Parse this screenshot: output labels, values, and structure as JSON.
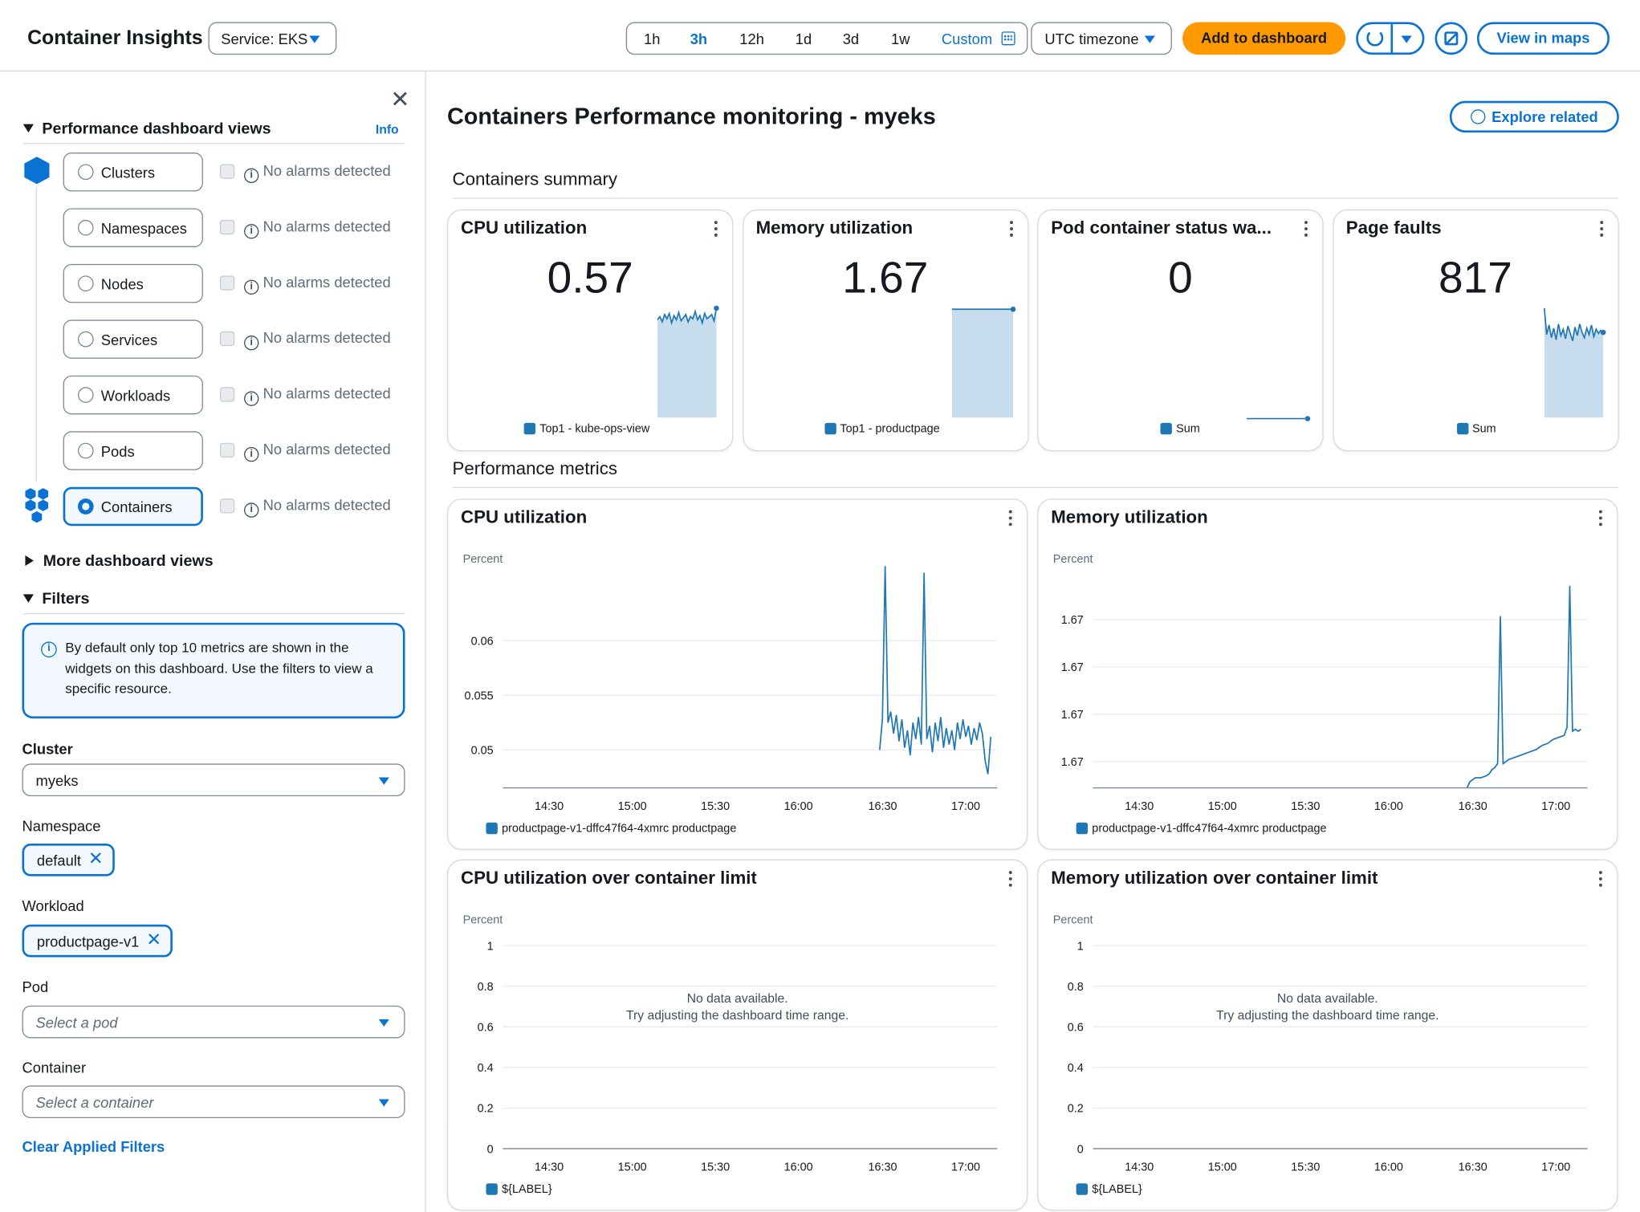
{
  "header": {
    "title": "Container Insights",
    "service_select": "Service: EKS",
    "time_options": [
      "1h",
      "3h",
      "12h",
      "1d",
      "3d",
      "1w"
    ],
    "time_active": "3h",
    "custom_label": "Custom",
    "timezone": "UTC timezone",
    "add_dashboard": "Add to dashboard",
    "view_maps": "View in maps"
  },
  "sidebar": {
    "perf_views_heading": "Performance dashboard views",
    "info_link": "Info",
    "views": [
      {
        "label": "Clusters",
        "alarm": "No alarms detected"
      },
      {
        "label": "Namespaces",
        "alarm": "No alarms detected"
      },
      {
        "label": "Nodes",
        "alarm": "No alarms detected"
      },
      {
        "label": "Services",
        "alarm": "No alarms detected"
      },
      {
        "label": "Workloads",
        "alarm": "No alarms detected"
      },
      {
        "label": "Pods",
        "alarm": "No alarms detected"
      },
      {
        "label": "Containers",
        "alarm": "No alarms detected"
      }
    ],
    "selected_view": "Containers",
    "more_views": "More dashboard views",
    "filters_heading": "Filters",
    "filters_info": "By default only top 10 metrics are shown in the widgets on this dashboard. Use the filters to view a specific resource.",
    "cluster_label": "Cluster",
    "cluster_value": "myeks",
    "namespace_label": "Namespace",
    "namespace_token": "default",
    "workload_label": "Workload",
    "workload_token": "productpage-v1",
    "pod_label": "Pod",
    "pod_placeholder": "Select a pod",
    "container_label": "Container",
    "container_placeholder": "Select a container",
    "clear_filters": "Clear Applied Filters"
  },
  "main": {
    "page_title": "Containers Performance monitoring - myeks",
    "explore_related": "Explore related",
    "summary_heading": "Containers summary",
    "perf_heading": "Performance metrics",
    "summary_cards": [
      {
        "title": "CPU utilization",
        "value": "0.57",
        "legend": "Top1 - kube-ops-view"
      },
      {
        "title": "Memory utilization",
        "value": "1.67",
        "legend": "Top1 - productpage"
      },
      {
        "title": "Pod container status wa...",
        "value": "0",
        "legend": "Sum"
      },
      {
        "title": "Page faults",
        "value": "817",
        "legend": "Sum"
      }
    ],
    "charts": [
      {
        "title": "CPU utilization",
        "unit": "Percent",
        "legend": "productpage-v1-dffc47f64-4xmrc productpage"
      },
      {
        "title": "Memory utilization",
        "unit": "Percent",
        "legend": "productpage-v1-dffc47f64-4xmrc productpage"
      },
      {
        "title": "CPU utilization over container limit",
        "unit": "Percent",
        "legend": "${LABEL}",
        "nodata_1": "No data available.",
        "nodata_2": "Try adjusting the dashboard time range."
      },
      {
        "title": "Memory utilization over container limit",
        "unit": "Percent",
        "legend": "${LABEL}",
        "nodata_1": "No data available.",
        "nodata_2": "Try adjusting the dashboard time range."
      }
    ]
  },
  "chart_data": [
    {
      "type": "line",
      "title": "CPU utilization",
      "ylabel": "Percent",
      "x": [
        "14:30",
        "15:00",
        "15:30",
        "16:00",
        "16:30",
        "17:00"
      ],
      "yticks": [
        "0.06",
        "0.055",
        "0.05"
      ],
      "ylim": [
        0.047,
        0.066
      ],
      "xlim_hours": [
        "14:10",
        "17:10"
      ],
      "series": [
        {
          "name": "productpage-v1-dffc47f64-4xmrc productpage",
          "points": [
            [
              "16:29",
              0.05
            ],
            [
              "16:30",
              0.0528
            ],
            [
              "16:31",
              0.0668
            ],
            [
              "16:32",
              0.0525
            ],
            [
              "16:33",
              0.0535
            ],
            [
              "16:34",
              0.0515
            ],
            [
              "16:35",
              0.0532
            ],
            [
              "16:36",
              0.0508
            ],
            [
              "16:37",
              0.0528
            ],
            [
              "16:38",
              0.0502
            ],
            [
              "16:39",
              0.0518
            ],
            [
              "16:40",
              0.0495
            ],
            [
              "16:41",
              0.0525
            ],
            [
              "16:42",
              0.051
            ],
            [
              "16:43",
              0.053
            ],
            [
              "16:44",
              0.0505
            ],
            [
              "16:45",
              0.0662
            ],
            [
              "16:46",
              0.051
            ],
            [
              "16:47",
              0.0522
            ],
            [
              "16:48",
              0.0498
            ],
            [
              "16:49",
              0.0525
            ],
            [
              "16:50",
              0.0508
            ],
            [
              "16:51",
              0.053
            ],
            [
              "16:52",
              0.0502
            ],
            [
              "16:53",
              0.052
            ],
            [
              "16:54",
              0.0505
            ],
            [
              "16:55",
              0.0518
            ],
            [
              "16:56",
              0.05
            ],
            [
              "16:57",
              0.0525
            ],
            [
              "16:58",
              0.051
            ],
            [
              "16:59",
              0.0528
            ],
            [
              "17:00",
              0.0512
            ],
            [
              "17:01",
              0.0522
            ],
            [
              "17:02",
              0.0505
            ],
            [
              "17:03",
              0.052
            ],
            [
              "17:04",
              0.0509
            ],
            [
              "17:05",
              0.0525
            ],
            [
              "17:06",
              0.0515
            ],
            [
              "17:07",
              0.049
            ],
            [
              "17:08",
              0.0478
            ],
            [
              "17:09",
              0.0512
            ]
          ]
        }
      ]
    },
    {
      "type": "line",
      "title": "Memory utilization",
      "ylabel": "Percent",
      "x": [
        "14:30",
        "15:00",
        "15:30",
        "16:00",
        "16:30",
        "17:00"
      ],
      "yticks": [
        "1.67",
        "1.67",
        "1.67",
        "1.67"
      ],
      "series": [
        {
          "name": "productpage-v1-dffc47f64-4xmrc productpage",
          "relative_points": [
            [
              "16:28",
              0.0
            ],
            [
              "16:29",
              0.03
            ],
            [
              "16:31",
              0.05
            ],
            [
              "16:33",
              0.05
            ],
            [
              "16:35",
              0.06
            ],
            [
              "16:36",
              0.07
            ],
            [
              "16:37",
              0.09
            ],
            [
              "16:38",
              0.1
            ],
            [
              "16:39",
              0.12
            ],
            [
              "16:40",
              0.85
            ],
            [
              "16:41",
              0.12
            ],
            [
              "16:43",
              0.14
            ],
            [
              "16:45",
              0.15
            ],
            [
              "16:47",
              0.16
            ],
            [
              "16:49",
              0.17
            ],
            [
              "16:51",
              0.18
            ],
            [
              "16:53",
              0.19
            ],
            [
              "16:55",
              0.21
            ],
            [
              "16:57",
              0.22
            ],
            [
              "16:59",
              0.24
            ],
            [
              "17:01",
              0.25
            ],
            [
              "17:03",
              0.26
            ],
            [
              "17:04",
              0.3
            ],
            [
              "17:05",
              1.0
            ],
            [
              "17:06",
              0.28
            ],
            [
              "17:07",
              0.29
            ],
            [
              "17:08",
              0.28
            ],
            [
              "17:09",
              0.29
            ]
          ]
        }
      ]
    },
    {
      "type": "line",
      "title": "CPU utilization over container limit",
      "ylabel": "Percent",
      "x": [
        "14:30",
        "15:00",
        "15:30",
        "16:00",
        "16:30",
        "17:00"
      ],
      "yticks": [
        "1",
        "0.8",
        "0.6",
        "0.4",
        "0.2",
        "0"
      ],
      "ylim": [
        0,
        1
      ],
      "series": []
    },
    {
      "type": "line",
      "title": "Memory utilization over container limit",
      "ylabel": "Percent",
      "x": [
        "14:30",
        "15:00",
        "15:30",
        "16:00",
        "16:30",
        "17:00"
      ],
      "yticks": [
        "1",
        "0.8",
        "0.6",
        "0.4",
        "0.2",
        "0"
      ],
      "ylim": [
        0,
        1
      ],
      "series": []
    }
  ],
  "colors": {
    "accent": "#0972d3",
    "series": "#1f77b4",
    "area": "#c7dcec",
    "primary_button": "#ff9900"
  }
}
